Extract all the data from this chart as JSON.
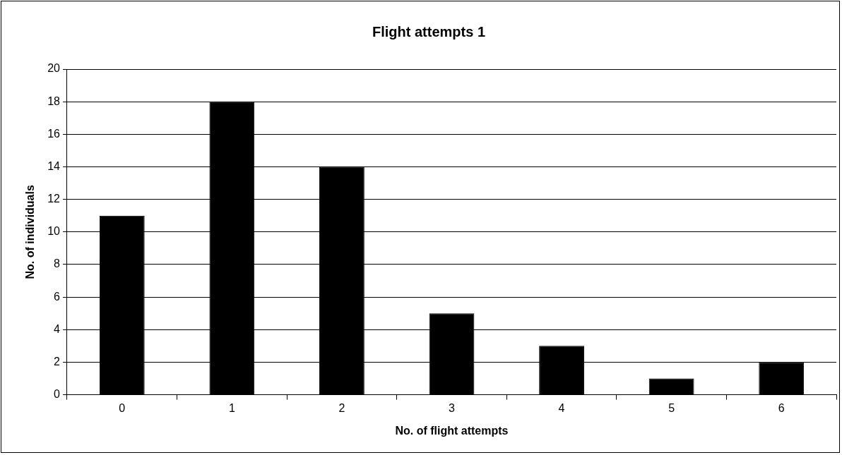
{
  "chart_data": {
    "type": "bar",
    "title": "Flight attempts 1",
    "xlabel": "No. of flight attempts",
    "ylabel": "No. of individuals",
    "categories": [
      "0",
      "1",
      "2",
      "3",
      "4",
      "5",
      "6"
    ],
    "values": [
      11,
      18,
      14,
      5,
      3,
      1,
      2
    ],
    "color": "#000000",
    "ylim": [
      0,
      20
    ],
    "yticks": [
      0,
      2,
      4,
      6,
      8,
      10,
      12,
      14,
      16,
      18,
      20
    ],
    "grid": "y",
    "legend": false
  }
}
